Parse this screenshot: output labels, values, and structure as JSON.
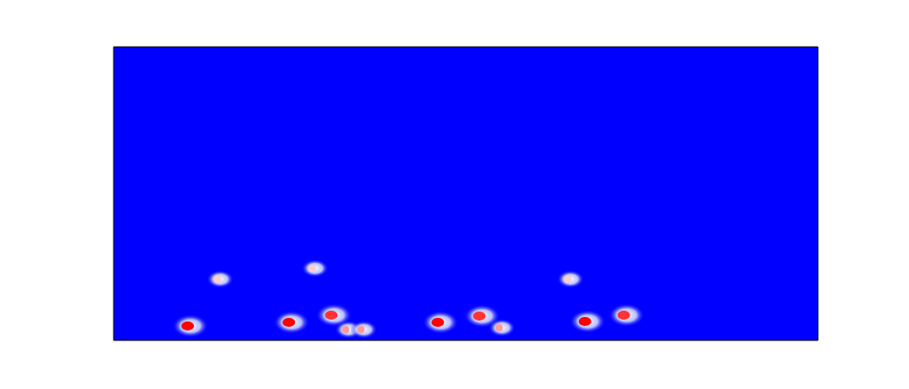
{
  "chart_data": {
    "type": "heatmap",
    "tick_labels": false,
    "color": "#0000ff",
    "xlim": [
      0,
      780
    ],
    "ylim": [
      0,
      326
    ],
    "x": [
      82,
      115,
      194,
      220,
      241,
      257,
      274,
      359,
      405,
      427,
      503,
      522,
      565
    ],
    "y": [
      16,
      68,
      20,
      80,
      28,
      12,
      12,
      20,
      27,
      14,
      68,
      21,
      28
    ],
    "values": [
      1.0,
      0.6,
      1.0,
      0.6,
      0.9,
      0.7,
      0.7,
      1.0,
      0.9,
      0.7,
      0.6,
      1.0,
      0.9
    ]
  }
}
